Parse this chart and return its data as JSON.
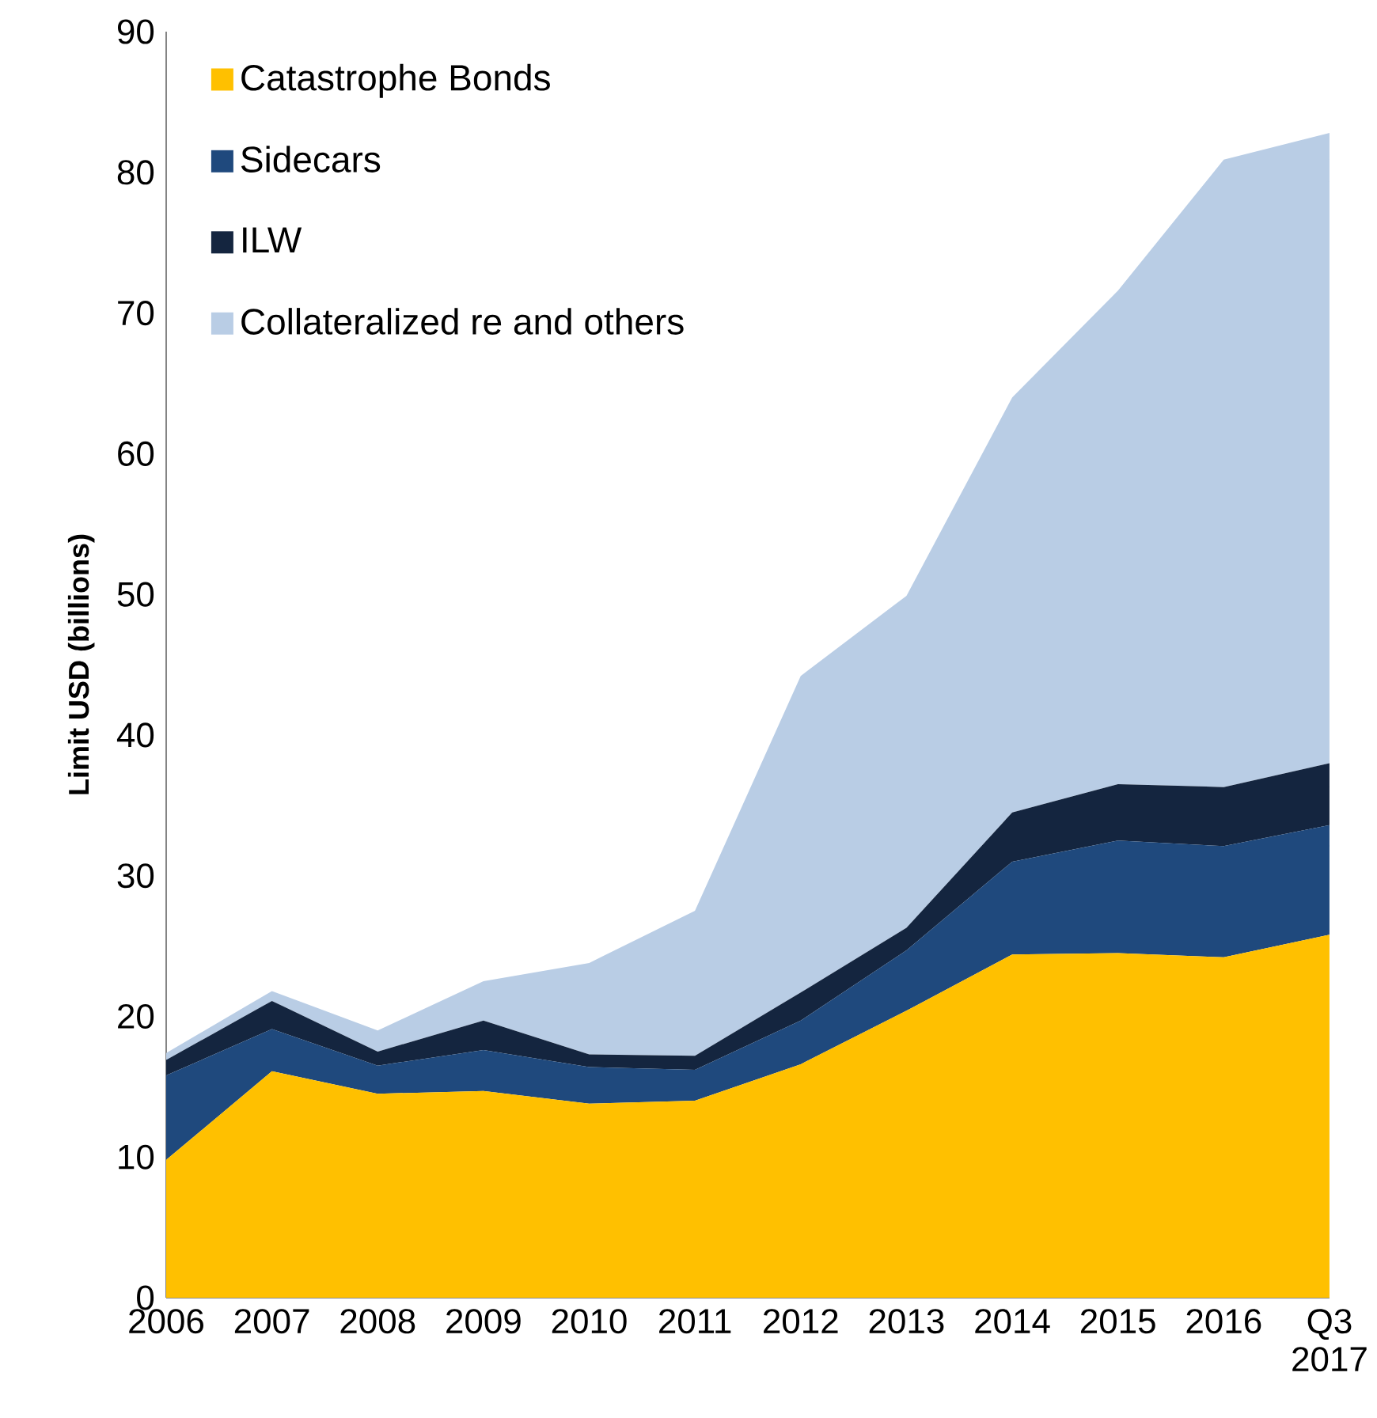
{
  "chart_data": {
    "type": "area",
    "stacked": true,
    "ylabel": "Limit USD (billions)",
    "categories": [
      "2006",
      "2007",
      "2008",
      "2009",
      "2010",
      "2011",
      "2012",
      "2013",
      "2014",
      "2015",
      "2016",
      "Q3 2017"
    ],
    "series": [
      {
        "name": "Catastrophe Bonds",
        "color": "#ffc000",
        "values": [
          9.8,
          16.1,
          14.5,
          14.7,
          13.8,
          14.0,
          16.6,
          20.4,
          24.4,
          24.5,
          24.2,
          25.8
        ]
      },
      {
        "name": "Sidecars",
        "color": "#1f497d",
        "values": [
          6.0,
          3.0,
          2.0,
          2.9,
          2.6,
          2.2,
          3.1,
          4.3,
          6.6,
          8.0,
          7.9,
          7.8
        ]
      },
      {
        "name": "ILW",
        "color": "#14253f",
        "values": [
          1.1,
          2.0,
          1.0,
          2.1,
          0.9,
          1.0,
          2.0,
          1.6,
          3.5,
          4.0,
          4.2,
          4.4
        ]
      },
      {
        "name": "Collateralized re and others",
        "color": "#b9cde5",
        "values": [
          0.5,
          0.7,
          1.5,
          2.8,
          6.5,
          10.3,
          22.5,
          23.6,
          29.5,
          35.1,
          44.6,
          44.8
        ]
      }
    ],
    "ylim": [
      0,
      90
    ],
    "yticks": [
      0,
      10,
      20,
      30,
      40,
      50,
      60,
      70,
      80,
      90
    ],
    "legend": "top left",
    "grid": false
  }
}
